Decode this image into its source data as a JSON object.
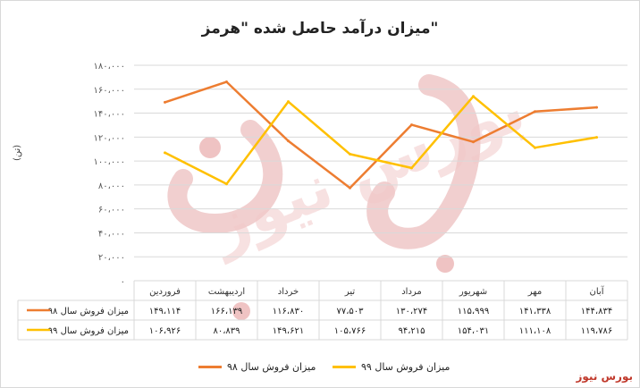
{
  "chart_data": {
    "type": "line",
    "title": "\"میزان درآمد حاصل شده \"هرمز",
    "ylabel": "(تن)",
    "ylim": [
      0,
      180000
    ],
    "y_ticks": [
      "۰",
      "۲۰،۰۰۰",
      "۴۰،۰۰۰",
      "۶۰،۰۰۰",
      "۸۰،۰۰۰",
      "۱۰۰،۰۰۰",
      "۱۲۰،۰۰۰",
      "۱۴۰،۰۰۰",
      "۱۶۰،۰۰۰",
      "۱۸۰،۰۰۰"
    ],
    "categories": [
      "فروردین",
      "اردیبهشت",
      "خرداد",
      "تیر",
      "مرداد",
      "شهریور",
      "مهر",
      "آبان"
    ],
    "series": [
      {
        "name": "میزان فروش سال ۹۸",
        "color": "#ED7D31",
        "values": [
          149114,
          166139,
          116830,
          77503,
          130274,
          115999,
          141338,
          144834
        ],
        "labels": [
          "۱۴۹،۱۱۴",
          "۱۶۶،۱۳۹",
          "۱۱۶،۸۳۰",
          "۷۷،۵۰۳",
          "۱۳۰،۲۷۴",
          "۱۱۵،۹۹۹",
          "۱۴۱،۳۳۸",
          "۱۴۴،۸۳۴"
        ]
      },
      {
        "name": "میزان فروش سال ۹۹",
        "color": "#FFC000",
        "values": [
          106926,
          80839,
          149621,
          105766,
          94215,
          154031,
          111108,
          119786
        ],
        "labels": [
          "۱۰۶،۹۲۶",
          "۸۰،۸۳۹",
          "۱۴۹،۶۲۱",
          "۱۰۵،۷۶۶",
          "۹۴،۲۱۵",
          "۱۵۴،۰۳۱",
          "۱۱۱،۱۰۸",
          "۱۱۹،۷۸۶"
        ]
      }
    ],
    "grid": true,
    "legend": "bottom",
    "watermark": "بورس نیوز"
  },
  "brand": "بورس نیوز"
}
